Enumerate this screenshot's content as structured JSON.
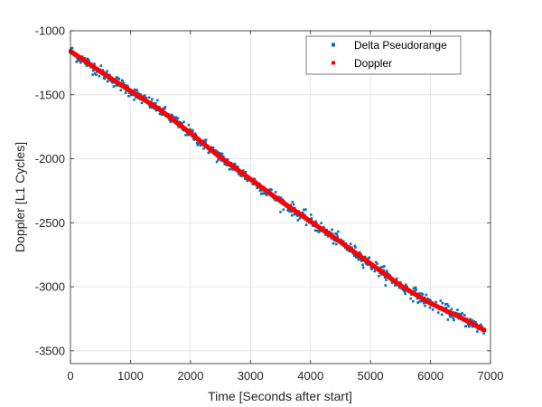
{
  "chart_data": {
    "type": "scatter",
    "title": "",
    "xlabel": "Time [Seconds after start]",
    "ylabel": "Doppler [L1 Cycles]",
    "xlim": [
      0,
      7000
    ],
    "ylim": [
      -3600,
      -1000
    ],
    "xticks": [
      0,
      1000,
      2000,
      3000,
      4000,
      5000,
      6000,
      7000
    ],
    "yticks": [
      -1000,
      -1500,
      -2000,
      -2500,
      -3000,
      -3500
    ],
    "xtick_labels": [
      "0",
      "1000",
      "2000",
      "3000",
      "4000",
      "5000",
      "6000",
      "7000"
    ],
    "ytick_labels": [
      "-1000",
      "-1500",
      "-2000",
      "-2500",
      "-3000",
      "-3500"
    ],
    "grid": true,
    "legend_position": "top-right",
    "series": [
      {
        "name": "Delta Pseudorange",
        "color": "#0072BD",
        "marker": "dot",
        "x_range": [
          0,
          6900
        ],
        "x_step": 10,
        "trend_x": [
          0,
          500,
          1000,
          1500,
          2000,
          2500,
          3000,
          3500,
          4000,
          4500,
          5000,
          5500,
          6000,
          6500,
          6900
        ],
        "trend_y": [
          -1160,
          -1320,
          -1470,
          -1620,
          -1800,
          -1990,
          -2160,
          -2330,
          -2490,
          -2650,
          -2820,
          -2990,
          -3130,
          -3240,
          -3340
        ],
        "noise_spread": 45
      },
      {
        "name": "Doppler",
        "color": "#FF0000",
        "marker": "dot",
        "x": [
          0,
          500,
          1000,
          1500,
          2000,
          2500,
          3000,
          3500,
          4000,
          4500,
          5000,
          5500,
          6000,
          6500,
          6900
        ],
        "y": [
          -1160,
          -1320,
          -1470,
          -1620,
          -1800,
          -1990,
          -2160,
          -2330,
          -2490,
          -2650,
          -2820,
          -2990,
          -3130,
          -3240,
          -3340
        ]
      }
    ]
  }
}
